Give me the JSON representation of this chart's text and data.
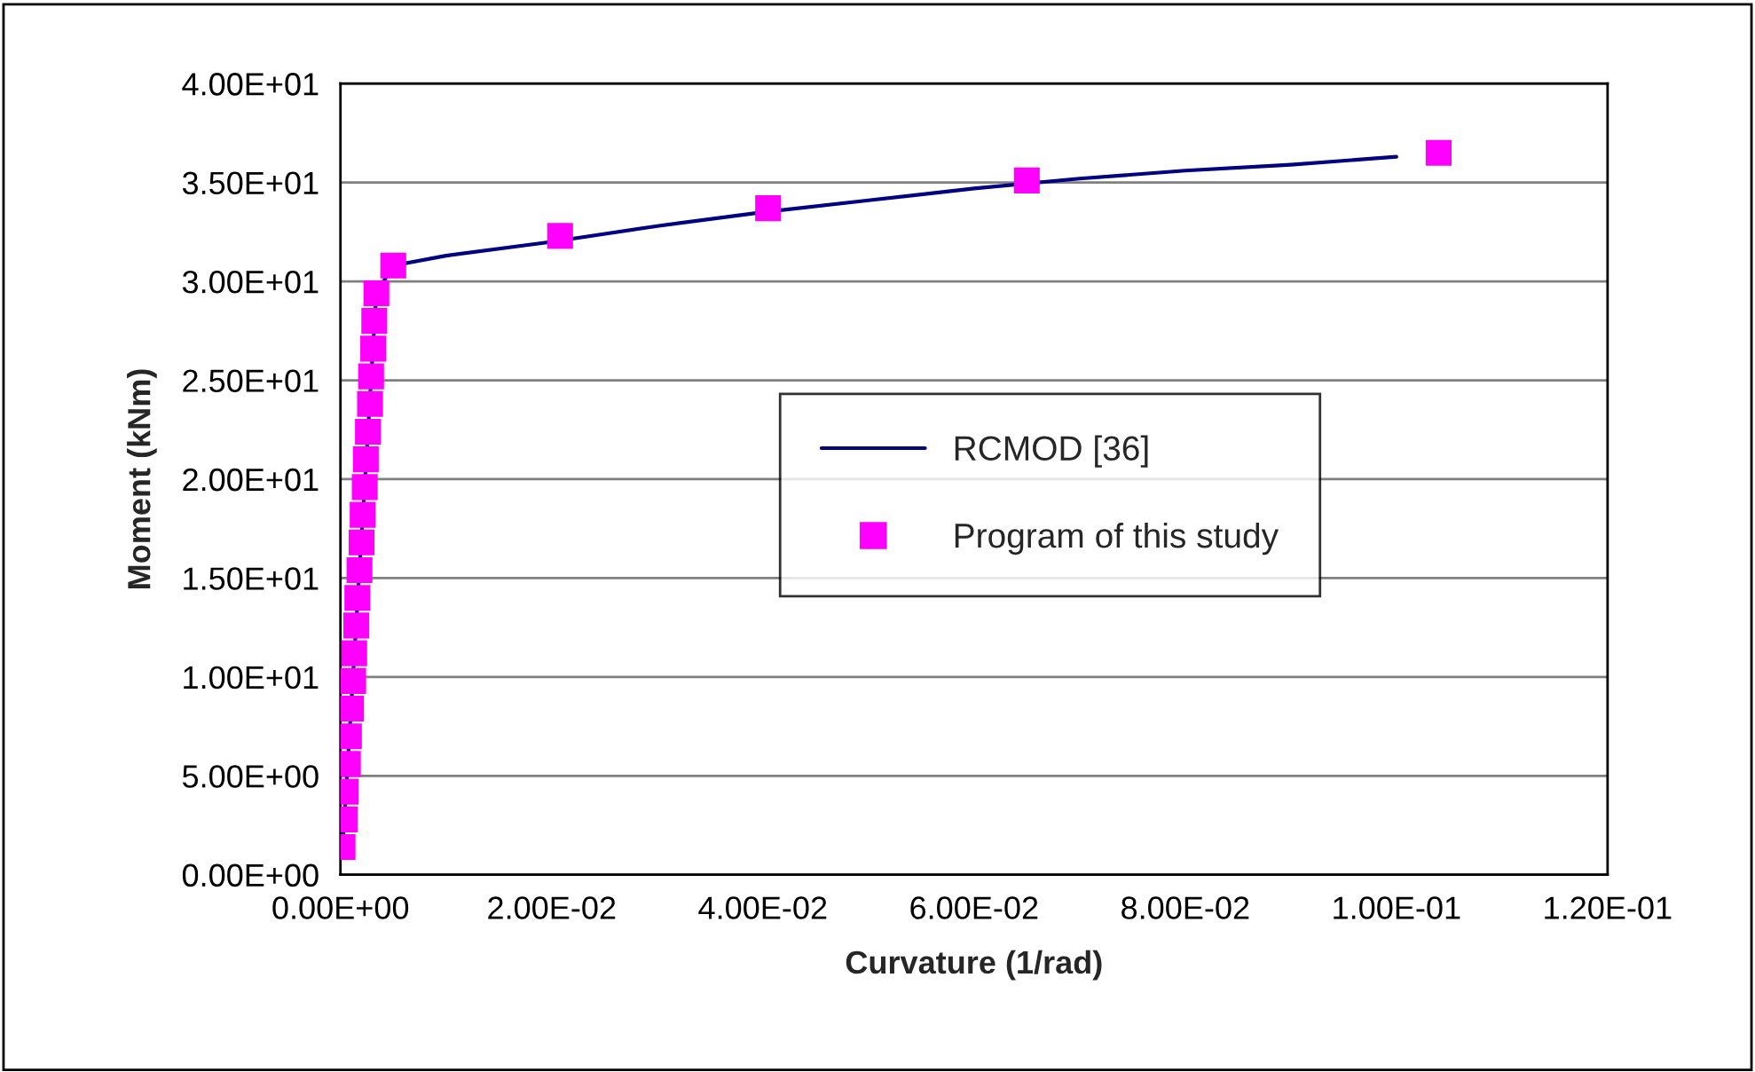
{
  "chart_data": {
    "type": "scatter",
    "xlabel": "Curvature (1/rad)",
    "ylabel": "Moment (kNm)",
    "series": [
      {
        "name": "RCMOD [36]",
        "type": "line",
        "color": "#000080",
        "marker": "none",
        "line_style": "solid",
        "x": [
          0.0002,
          0.0034,
          0.005,
          0.01,
          0.02,
          0.03,
          0.04,
          0.05,
          0.06,
          0.07,
          0.08,
          0.09,
          0.1
        ],
        "values": [
          1.4,
          29.4,
          30.8,
          31.3,
          32.0,
          32.8,
          33.5,
          34.1,
          34.7,
          35.2,
          35.6,
          35.9,
          36.3
        ]
      },
      {
        "name": "Program of this study",
        "color": "#ff00ff",
        "marker": "square",
        "x": [
          0.0002,
          0.0004,
          0.0005,
          0.0007,
          0.0008,
          0.001,
          0.0012,
          0.0013,
          0.0015,
          0.0016,
          0.0018,
          0.002,
          0.0021,
          0.0023,
          0.0024,
          0.0026,
          0.0028,
          0.0029,
          0.0031,
          0.0032,
          0.0034,
          0.005,
          0.0208,
          0.0405,
          0.065,
          0.104
        ],
        "values": [
          1.4,
          2.8,
          4.2,
          5.6,
          7.0,
          8.4,
          9.8,
          11.2,
          12.6,
          14.0,
          15.4,
          16.8,
          18.2,
          19.6,
          21.0,
          22.4,
          23.8,
          25.2,
          26.6,
          28.0,
          29.4,
          30.8,
          32.3,
          33.7,
          35.1,
          36.5
        ]
      }
    ],
    "xlim": [
      0,
      0.12
    ],
    "xticks": [
      {
        "value": 0,
        "label": "0.00E+00"
      },
      {
        "value": 0.02,
        "label": "2.00E-02"
      },
      {
        "value": 0.04,
        "label": "4.00E-02"
      },
      {
        "value": 0.06,
        "label": "6.00E-02"
      },
      {
        "value": 0.08,
        "label": "8.00E-02"
      },
      {
        "value": 0.1,
        "label": "1.00E-01"
      },
      {
        "value": 0.12,
        "label": "1.20E-01"
      }
    ],
    "ylim": [
      0,
      40
    ],
    "yticks": [
      {
        "value": 0,
        "label": "0.00E+00"
      },
      {
        "value": 5,
        "label": "5.00E+00"
      },
      {
        "value": 10,
        "label": "1.00E+01"
      },
      {
        "value": 15,
        "label": "1.50E+01"
      },
      {
        "value": 20,
        "label": "2.00E+01"
      },
      {
        "value": 25,
        "label": "2.50E+01"
      },
      {
        "value": 30,
        "label": "3.00E+01"
      },
      {
        "value": 35,
        "label": "3.50E+01"
      },
      {
        "value": 40,
        "label": "4.00E+01"
      }
    ],
    "grid": "y",
    "legend": "center"
  }
}
